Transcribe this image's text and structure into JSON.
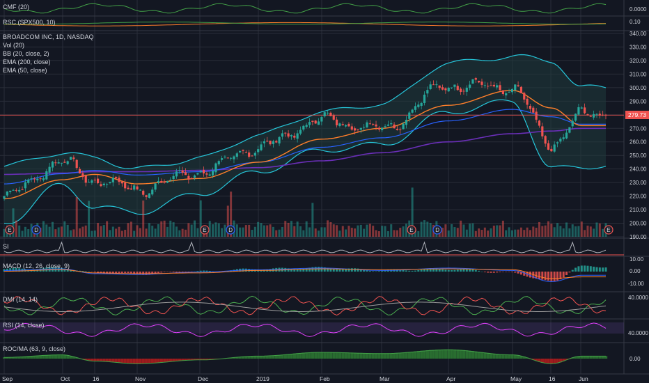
{
  "colors": {
    "background": "#131722",
    "grid": "#2a2e39",
    "text": "#d1d4dc",
    "up": "#26a69a",
    "down": "#ef5350",
    "bb": "#26c6da",
    "bb_fill": "#1f3a3d",
    "ema200": "#6a2fb8",
    "ema50": "#ff7f2a",
    "ema_short": "#2962ff",
    "price_line": "#ef5350",
    "rsi": "#e040fb",
    "dmi_plus": "#4caf50",
    "dmi_minus": "#ef5350",
    "adx": "#9e9e9e",
    "cmf": "#43a047",
    "rsc": "#ff7f2a"
  },
  "panes": {
    "cmf": {
      "label": "CMF (20)",
      "tick": "0.0000"
    },
    "rsc": {
      "label": "RSC (SPX500, 10)",
      "tick": "0.10"
    },
    "main": {
      "title": "BROADCOM INC, 1D, NASDAQ",
      "legend": [
        "Vol (20)",
        "BB (20, close, 2)",
        "EMA (200, close)",
        "EMA (50, close)"
      ],
      "price_ticks": [
        "340.00",
        "330.00",
        "320.00",
        "310.00",
        "300.00",
        "290.00",
        "280.00",
        "270.00",
        "260.00",
        "250.00",
        "240.00",
        "230.00",
        "220.00",
        "210.00",
        "200.00",
        "190.00"
      ],
      "last_price": "279.73",
      "events": [
        "E",
        "D",
        "E",
        "D",
        "E",
        "D",
        "E"
      ]
    },
    "si": {
      "label": "SI"
    },
    "macd": {
      "label": "MACD (12, 26, close, 9)",
      "ticks": [
        "10.00",
        "0.00",
        "-10.00"
      ]
    },
    "dmi": {
      "label": "DMI (14, 14)",
      "tick": "40.0000"
    },
    "rsi": {
      "label": "RSI (14, close)",
      "tick": "40.0000"
    },
    "roc": {
      "label": "ROC/MA (63, 9, close)",
      "tick": "0.00"
    }
  },
  "x_axis": [
    "Sep",
    "Oct",
    "16",
    "Nov",
    "Dec",
    "2019",
    "Feb",
    "Mar",
    "Apr",
    "May",
    "16",
    "Jun"
  ],
  "chart_data": {
    "type": "candlestick",
    "title": "BROADCOM INC, 1D, NASDAQ",
    "ylim": [
      190,
      340
    ],
    "last_price": 279.73,
    "x_ticks": [
      "Sep",
      "Oct",
      "16",
      "Nov",
      "Dec",
      "2019",
      "Feb",
      "Mar",
      "Apr",
      "May",
      "16",
      "Jun"
    ],
    "close_keypoints": [
      [
        "Sep",
        220
      ],
      [
        "Oct",
        245
      ],
      [
        "16",
        232
      ],
      [
        "Nov",
        225
      ],
      [
        "Dec",
        238
      ],
      [
        "2019",
        256
      ],
      [
        "Feb",
        276
      ],
      [
        "Mar",
        270
      ],
      [
        "Apr",
        302
      ],
      [
        "May",
        300
      ],
      [
        "16",
        258
      ],
      [
        "Jun",
        279.73
      ]
    ],
    "series": [
      {
        "name": "EMA (50, close)",
        "values": [
          218,
          232,
          236,
          229,
          233,
          245,
          262,
          270,
          287,
          298,
          285,
          272
        ]
      },
      {
        "name": "EMA (200, close)",
        "values": [
          236,
          237,
          238,
          238,
          239,
          241,
          246,
          252,
          260,
          266,
          268,
          270
        ]
      },
      {
        "name": "BB (20, close, 2) upper",
        "values": [
          242,
          252,
          248,
          240,
          248,
          265,
          282,
          288,
          318,
          323,
          320,
          300
        ]
      },
      {
        "name": "BB (20, close, 2) lower",
        "values": [
          200,
          228,
          212,
          208,
          222,
          238,
          254,
          258,
          282,
          290,
          240,
          242
        ]
      }
    ]
  }
}
